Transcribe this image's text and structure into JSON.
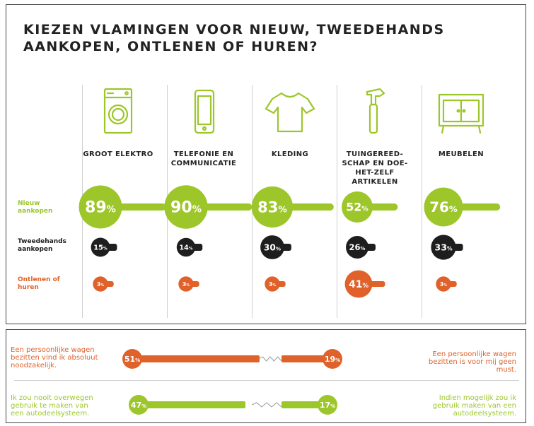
{
  "title": "KIEZEN VLAMINGEN VOOR NIEUW, TWEEDEHANDS AANKOPEN, ONTLENEN OF HUREN?",
  "colors": {
    "green": "#9dc62a",
    "black": "#1e1e1e",
    "orange": "#e0612a",
    "grey": "#cfcfcf"
  },
  "row_labels": [
    {
      "text": "Nieuw aankopen",
      "color": "#9dc62a"
    },
    {
      "text": "Tweedehands aankopen",
      "color": "#1e1e1e"
    },
    {
      "text": "Ontlenen of huren",
      "color": "#e0612a"
    }
  ],
  "chart_data": [
    {
      "type": "bar",
      "title": "KIEZEN VLAMINGEN VOOR NIEUW, TWEEDEHANDS AANKOPEN, ONTLENEN OF HUREN?",
      "categories": [
        "GROOT ELEKTRO",
        "TELEFONIE EN COMMUNICATIE",
        "KLEDING",
        "TUINGEREED-SCHAP EN DOE-HET-ZELF ARTIKELEN",
        "MEUBELEN"
      ],
      "icons": [
        "washing-machine-icon",
        "smartphone-icon",
        "tshirt-icon",
        "hammer-icon",
        "cabinet-icon"
      ],
      "unit": "%",
      "series": [
        {
          "name": "Nieuw aankopen",
          "values": [
            89,
            90,
            83,
            52,
            76
          ]
        },
        {
          "name": "Tweedehands aankopen",
          "values": [
            15,
            14,
            30,
            26,
            33
          ]
        },
        {
          "name": "Ontlenen of huren",
          "values": [
            3,
            3,
            3,
            41,
            3
          ]
        }
      ],
      "ylim": [
        0,
        100
      ]
    },
    {
      "type": "bar",
      "statements": [
        {
          "left_text": "Een persoonlijke wagen bezitten vind ik absoluut noodzakelijk.",
          "left_value": 51,
          "right_text": "Een persoonlijke wagen bezitten is voor mij geen must.",
          "right_value": 19,
          "color": "#e0612a"
        },
        {
          "left_text": "Ik zou nooit overwegen gebruik te maken van een autodeelsysteem.",
          "left_value": 47,
          "right_text": "Indien mogelijk zou ik gebruik maken van een autodeelsysteem.",
          "right_value": 17,
          "color": "#9dc62a"
        }
      ],
      "unit": "%"
    }
  ]
}
